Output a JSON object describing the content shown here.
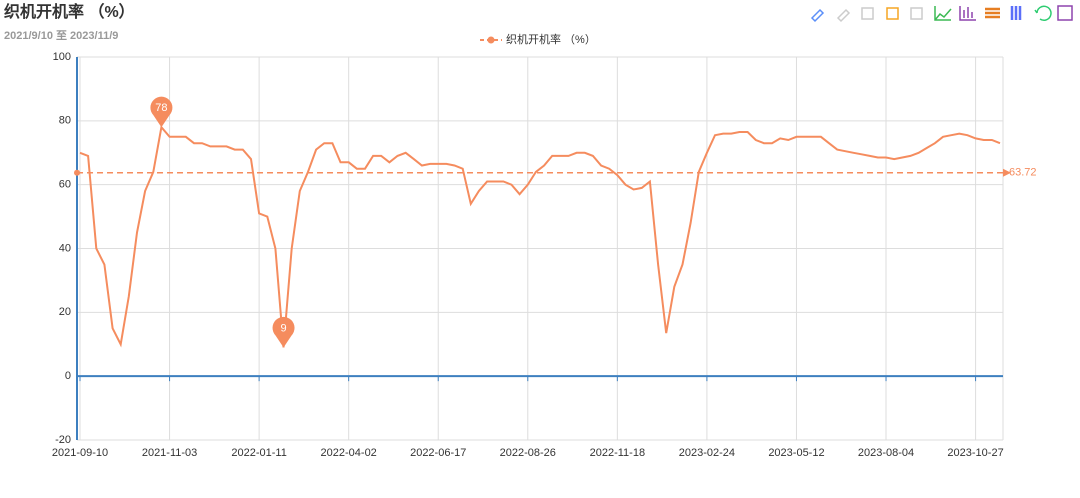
{
  "chart_data": {
    "type": "line",
    "title": "织机开机率 （%）",
    "subtitle": "2021/9/10 至 2023/11/9",
    "categories": [
      "2021-09-10",
      null,
      null,
      null,
      null,
      null,
      null,
      null,
      null,
      null,
      null,
      "2021-11-03",
      null,
      null,
      null,
      null,
      null,
      null,
      null,
      null,
      null,
      null,
      "2022-01-11",
      null,
      null,
      null,
      null,
      null,
      null,
      null,
      null,
      null,
      null,
      "2022-04-02",
      null,
      null,
      null,
      null,
      null,
      null,
      null,
      null,
      null,
      null,
      "2022-06-17",
      null,
      null,
      null,
      null,
      null,
      null,
      null,
      null,
      null,
      null,
      "2022-08-26",
      null,
      null,
      null,
      null,
      null,
      null,
      null,
      null,
      null,
      null,
      "2022-11-18",
      null,
      null,
      null,
      null,
      null,
      null,
      null,
      null,
      null,
      null,
      "2023-02-24",
      null,
      null,
      null,
      null,
      null,
      null,
      null,
      null,
      null,
      null,
      "2023-05-12",
      null,
      null,
      null,
      null,
      null,
      null,
      null,
      null,
      null,
      null,
      "2023-08-04",
      null,
      null,
      null,
      null,
      null,
      null,
      null,
      null,
      null,
      null,
      "2023-10-27",
      null,
      null,
      null
    ],
    "series": [
      {
        "name": "织机开机率 （%）",
        "color": "#f58c5e",
        "values": [
          70,
          69,
          40,
          35,
          15,
          10,
          25,
          45,
          58,
          64,
          78,
          75,
          75,
          75,
          73,
          73,
          72,
          72,
          72,
          71,
          71,
          68,
          51,
          50,
          40,
          9,
          40,
          58,
          64,
          71,
          73,
          73,
          67,
          67,
          65,
          65,
          69,
          69,
          67,
          69,
          70,
          68,
          66,
          66.5,
          66.5,
          66.5,
          66,
          65,
          54,
          58,
          61,
          61,
          61,
          60,
          57,
          60,
          64,
          66,
          69,
          69,
          69,
          70,
          70,
          69,
          66,
          65,
          63,
          60,
          58.5,
          59,
          61,
          35,
          13.5,
          28,
          35,
          48,
          64,
          70,
          75.5,
          76,
          76,
          76.5,
          76.5,
          74,
          73,
          73,
          74.5,
          74,
          75,
          75,
          75,
          75,
          73,
          71,
          70.5,
          70,
          69.5,
          69,
          68.5,
          68.5,
          68,
          68.5,
          69,
          70,
          71.5,
          73,
          75,
          75.5,
          76,
          75.5,
          74.5,
          74,
          74,
          73
        ]
      }
    ],
    "mark_points": [
      10,
      25
    ],
    "mark_line": 63.72,
    "ylim": [
      -20,
      100
    ],
    "yticks": [
      -20,
      0,
      20,
      40,
      60,
      80,
      100
    ],
    "grid": true
  }
}
